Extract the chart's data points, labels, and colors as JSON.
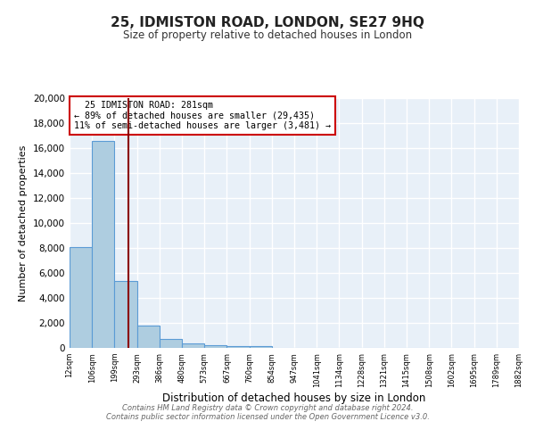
{
  "title": "25, IDMISTON ROAD, LONDON, SE27 9HQ",
  "subtitle": "Size of property relative to detached houses in London",
  "xlabel": "Distribution of detached houses by size in London",
  "ylabel": "Number of detached properties",
  "bar_values": [
    8068,
    16600,
    5350,
    1760,
    700,
    370,
    215,
    155,
    130,
    0,
    0,
    0,
    0,
    0,
    0,
    0,
    0,
    0,
    0,
    0
  ],
  "bar_labels": [
    "12sqm",
    "106sqm",
    "199sqm",
    "293sqm",
    "386sqm",
    "480sqm",
    "573sqm",
    "667sqm",
    "760sqm",
    "854sqm",
    "947sqm",
    "1041sqm",
    "1134sqm",
    "1228sqm",
    "1321sqm",
    "1415sqm",
    "1508sqm",
    "1602sqm",
    "1695sqm",
    "1789sqm",
    "1882sqm"
  ],
  "bar_color": "#aecde0",
  "bar_edge_color": "#5b9bd5",
  "vline_x": 2.62,
  "vline_color": "#8b0000",
  "annotation_text": "  25 IDMISTON ROAD: 281sqm\n← 89% of detached houses are smaller (29,435)\n11% of semi-detached houses are larger (3,481) →",
  "annotation_box_color": "#ffffff",
  "annotation_box_edge_color": "#cc0000",
  "ylim": [
    0,
    20000
  ],
  "yticks": [
    0,
    2000,
    4000,
    6000,
    8000,
    10000,
    12000,
    14000,
    16000,
    18000,
    20000
  ],
  "background_color": "#e8f0f8",
  "grid_color": "#ffffff",
  "fig_bg_color": "#ffffff",
  "footer_line1": "Contains HM Land Registry data © Crown copyright and database right 2024.",
  "footer_line2": "Contains public sector information licensed under the Open Government Licence v3.0."
}
